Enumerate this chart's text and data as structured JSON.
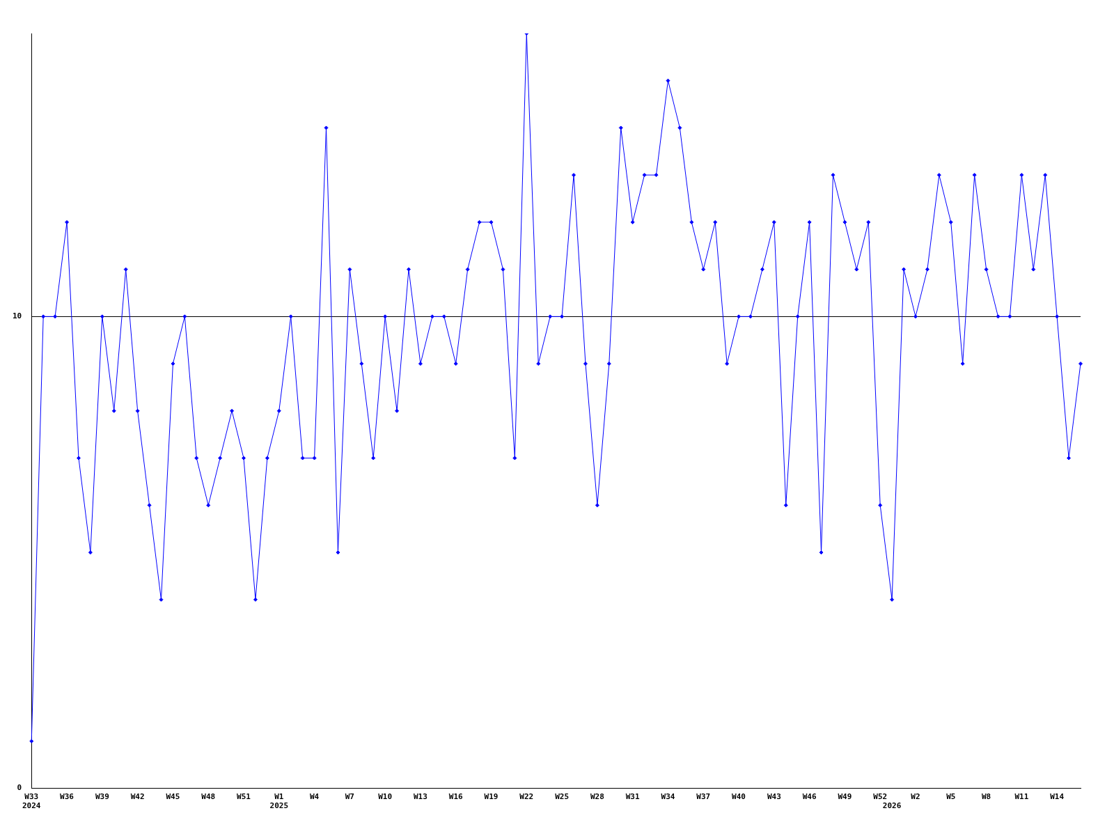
{
  "chart_data": {
    "type": "line",
    "categories": [
      "W33\n2024",
      null,
      null,
      "W36",
      null,
      null,
      "W39",
      null,
      null,
      "W42",
      null,
      null,
      "W45",
      null,
      null,
      "W48",
      null,
      null,
      "W51",
      null,
      null,
      "W1\n2025",
      null,
      null,
      "W4",
      null,
      null,
      "W7",
      null,
      null,
      "W10",
      null,
      null,
      "W13",
      null,
      null,
      "W16",
      null,
      null,
      "W19",
      null,
      null,
      "W22",
      null,
      null,
      "W25",
      null,
      null,
      "W28",
      null,
      null,
      "W31",
      null,
      null,
      "W34",
      null,
      null,
      "W37",
      null,
      null,
      "W40",
      null,
      null,
      "W43",
      null,
      null,
      "W46",
      null,
      null,
      "W49",
      null,
      null,
      "W52",
      "\n2026",
      null,
      "W2",
      null,
      null,
      "W5",
      null,
      null,
      "W8",
      null,
      null,
      "W11",
      null,
      null,
      "W14",
      null,
      null
    ],
    "series": [
      {
        "color": "#0000ff",
        "values": [
          1,
          10,
          10,
          12,
          7,
          5,
          10,
          8,
          11,
          8,
          6,
          4,
          9,
          10,
          7,
          6,
          7,
          8,
          7,
          4,
          7,
          8,
          10,
          7,
          7,
          14,
          5,
          11,
          9,
          7,
          10,
          8,
          11,
          9,
          10,
          10,
          9,
          11,
          12,
          12,
          11,
          7,
          16,
          9,
          10,
          10,
          13,
          9,
          6,
          9,
          14,
          12,
          13,
          13,
          15,
          14,
          12,
          11,
          12,
          9,
          10,
          10,
          11,
          12,
          6,
          10,
          12,
          5,
          13,
          12,
          11,
          12,
          6,
          4,
          11,
          10,
          11,
          13,
          12,
          9,
          13,
          11,
          10,
          10,
          13,
          11,
          13,
          10,
          7,
          9
        ]
      }
    ],
    "ylim": [
      0,
      16
    ],
    "yticks": [
      0,
      10
    ],
    "grid": "y",
    "marker": "diamond",
    "line_style": "solid",
    "legend": false
  }
}
